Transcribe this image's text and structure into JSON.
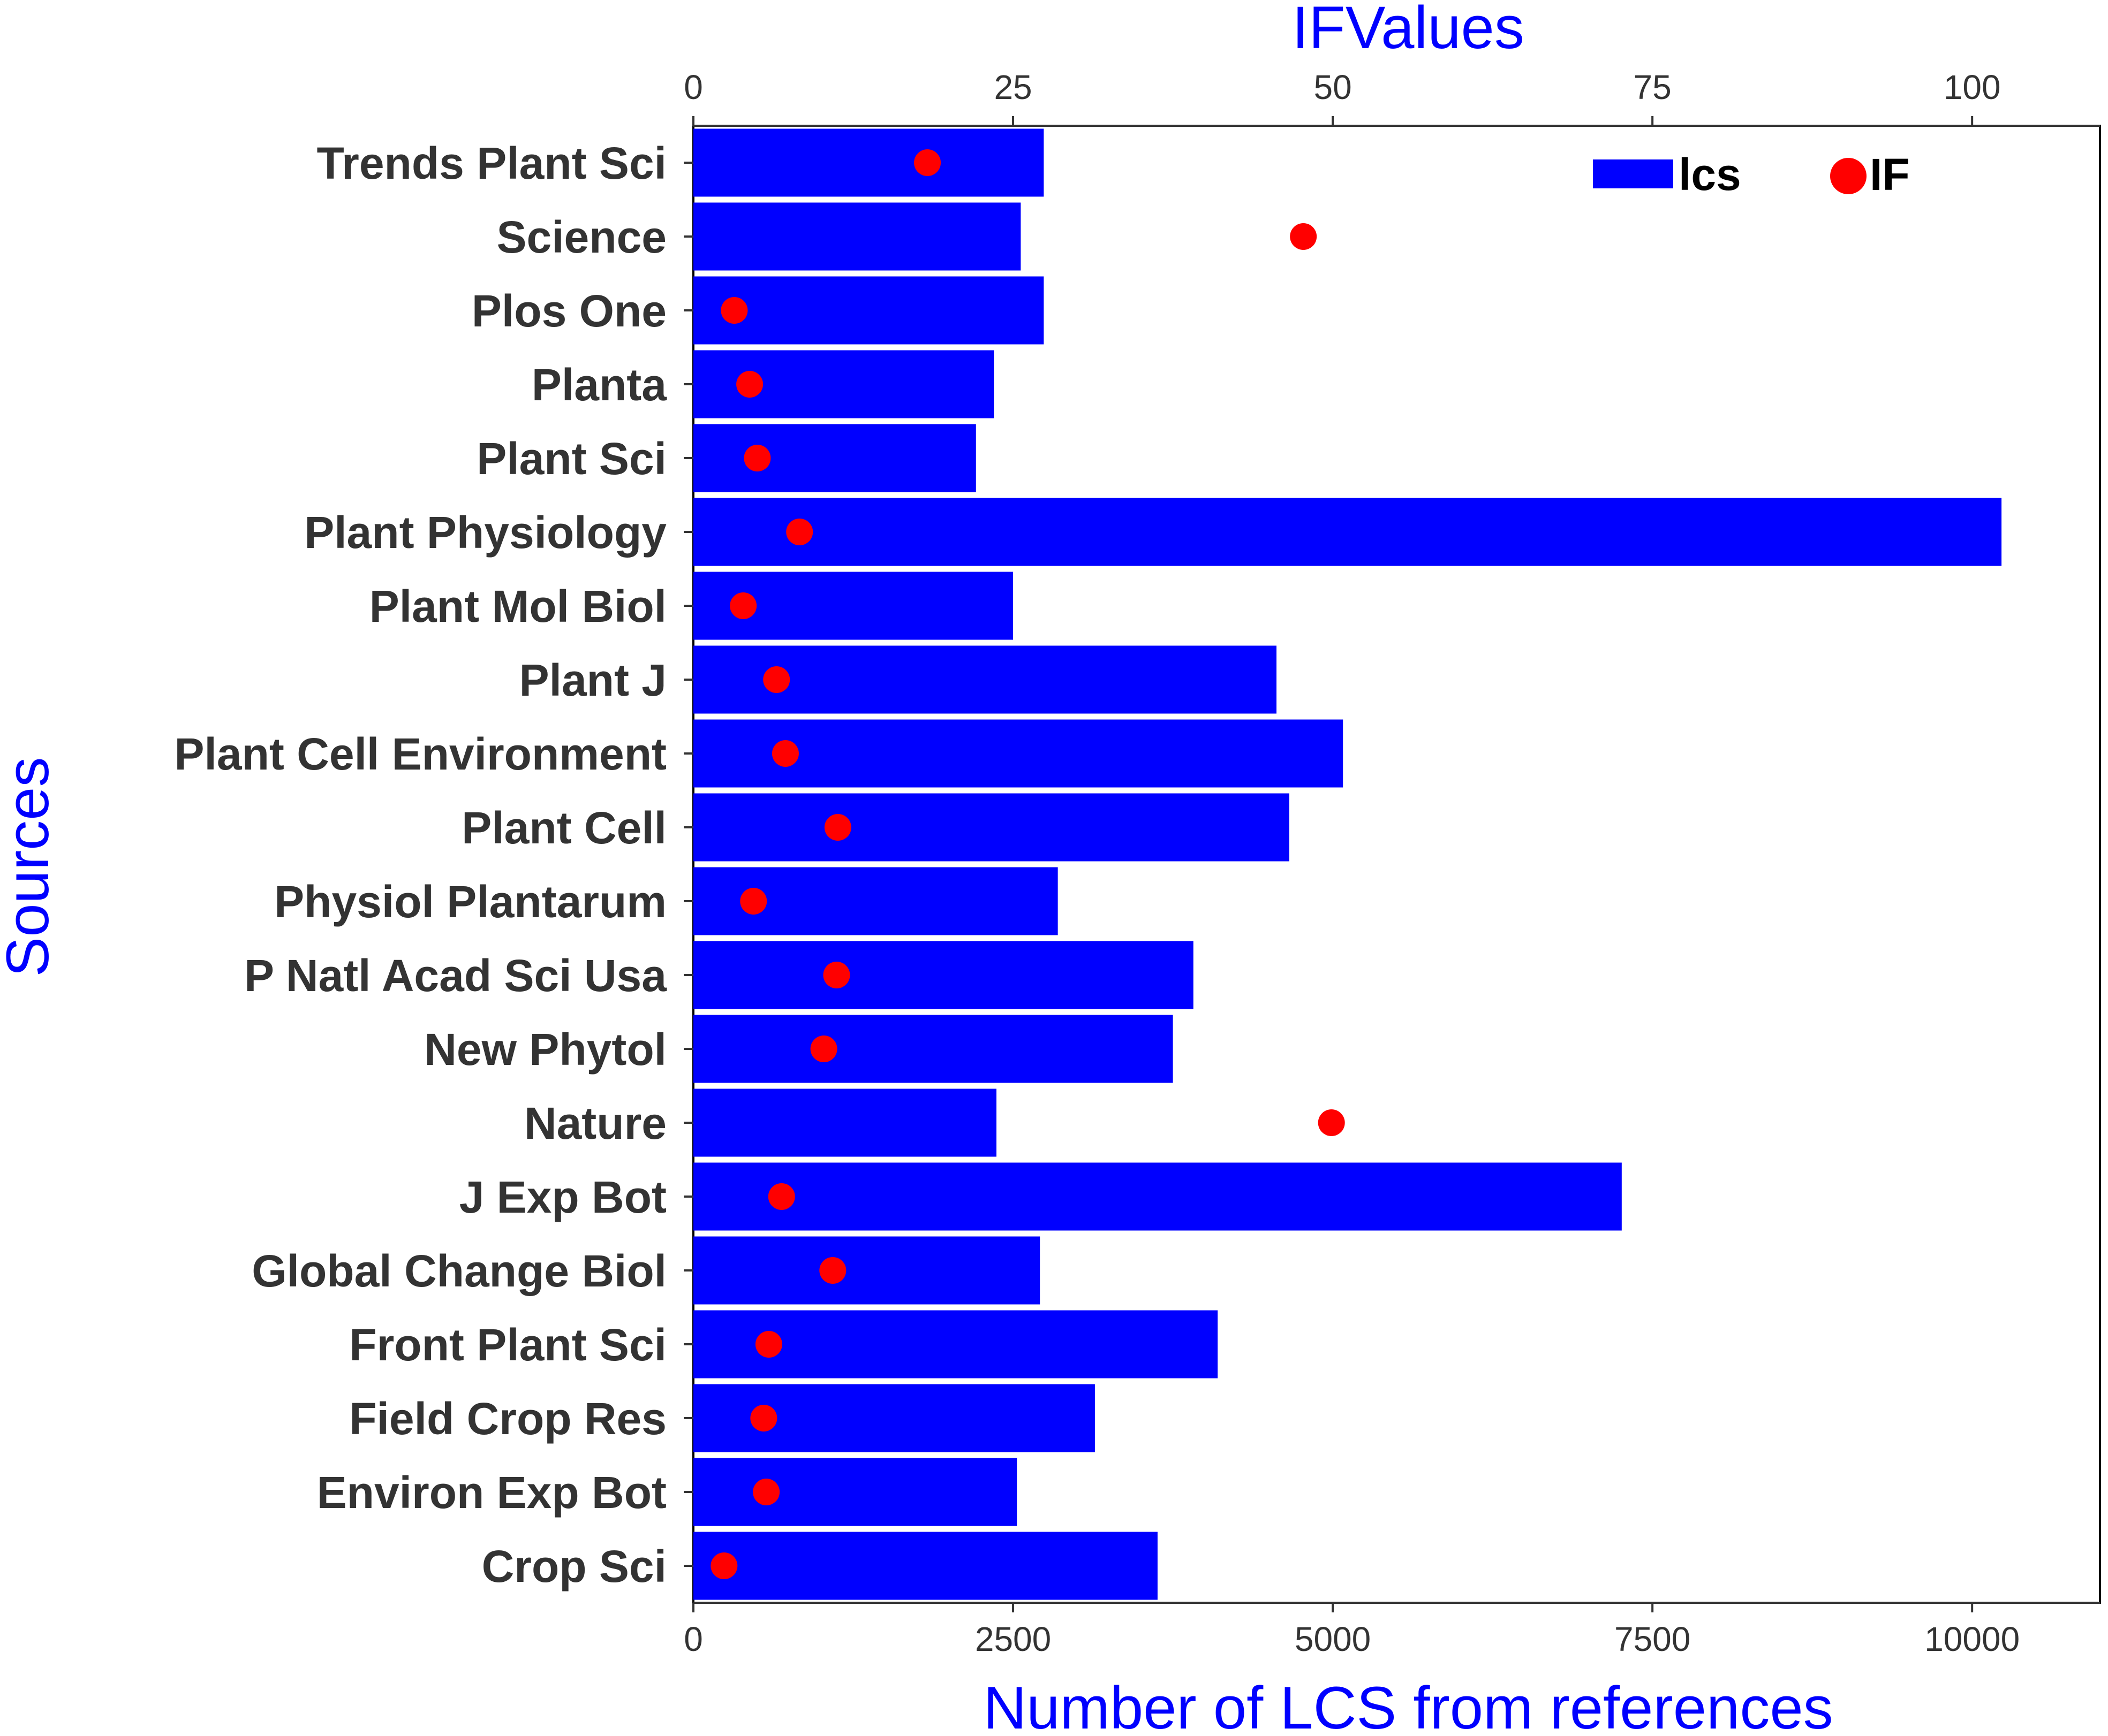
{
  "chart_data": {
    "type": "bar",
    "orientation": "horizontal",
    "categories": [
      "Trends Plant Sci",
      "Science",
      "Plos One",
      "Planta",
      "Plant Sci",
      "Plant Physiology",
      "Plant Mol Biol",
      "Plant J",
      "Plant Cell Environment",
      "Plant Cell",
      "Physiol Plantarum",
      "P Natl Acad Sci Usa",
      "New Phytol",
      "Nature",
      "J Exp Bot",
      "Global Change Biol",
      "Front Plant Sci",
      "Field Crop Res",
      "Environ Exp Bot",
      "Crop Sci"
    ],
    "series": [
      {
        "name": "lcs",
        "kind": "bar",
        "axis": "bottom",
        "values": [
          2740,
          2560,
          2740,
          2350,
          2210,
          10230,
          2500,
          4560,
          5080,
          4660,
          2850,
          3910,
          3750,
          2370,
          7260,
          2710,
          4100,
          3140,
          2530,
          3630
        ]
      },
      {
        "name": "IF",
        "kind": "point",
        "axis": "top",
        "values": [
          18.3,
          47.7,
          3.2,
          4.4,
          5.0,
          8.3,
          3.9,
          6.5,
          7.2,
          11.3,
          4.7,
          11.2,
          10.2,
          49.9,
          6.9,
          10.9,
          5.9,
          5.5,
          5.7,
          2.4
        ]
      }
    ],
    "xlabel": "Number of LCS from references",
    "x2label": "IFValues",
    "ylabel": "Sources",
    "xlim": [
      0,
      11000
    ],
    "x2lim": [
      0,
      110
    ],
    "xticks": [
      0,
      2500,
      5000,
      7500,
      10000
    ],
    "x2ticks": [
      0,
      25,
      50,
      75,
      100
    ],
    "legend_position": "top-right",
    "grid": false,
    "colors": {
      "bar": "#0000ff",
      "point": "#ff0000",
      "axis_title": "#0000ff"
    }
  }
}
